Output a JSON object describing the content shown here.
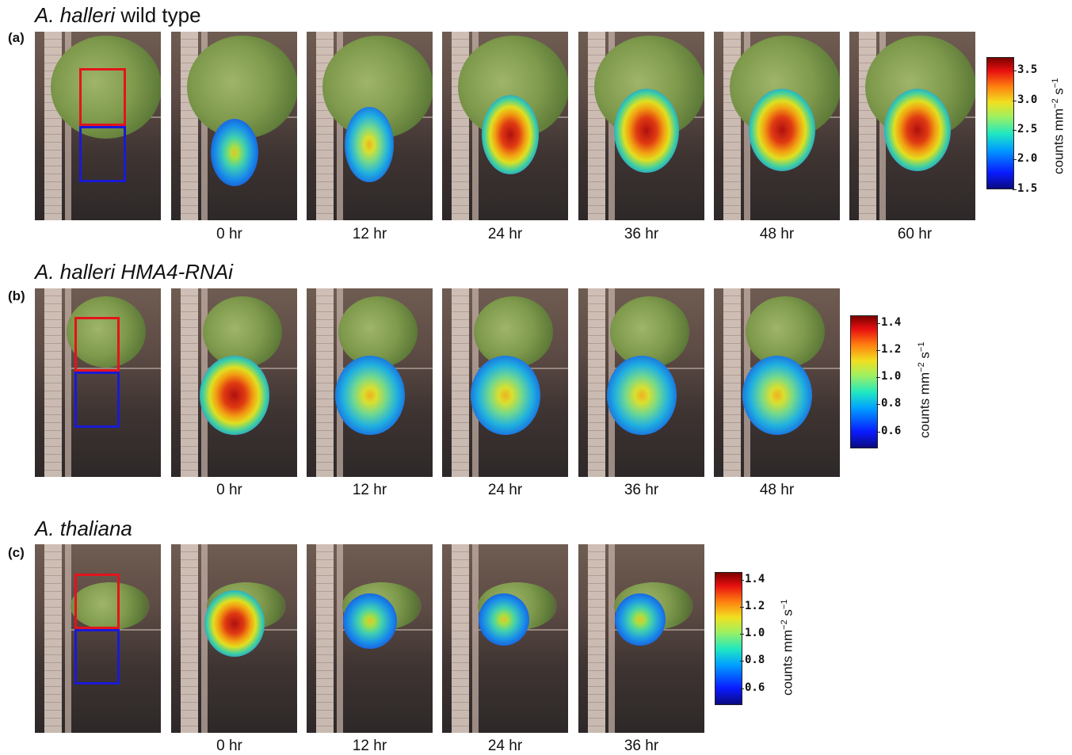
{
  "panels": [
    {
      "letter": "(a)",
      "title_italic": "A. halleri",
      "title_rest": " wild type",
      "timepoints": [
        "0 hr",
        "12 hr",
        "24 hr",
        "36 hr",
        "48 hr",
        "60 hr"
      ],
      "colorbar": {
        "ticks": [
          "3.5",
          "3.0",
          "2.5",
          "2.0",
          "1.5"
        ],
        "label": "counts mm",
        "exp1": "−2",
        "label2": " s",
        "exp2": "−1"
      }
    },
    {
      "letter": "(b)",
      "title_italic": "A. halleri HMA4-RNAi",
      "title_rest": "",
      "timepoints": [
        "0 hr",
        "12 hr",
        "24 hr",
        "36 hr",
        "48 hr"
      ],
      "colorbar": {
        "ticks": [
          "1.4",
          "1.2",
          "1.0",
          "0.8",
          "0.6"
        ],
        "label": "counts mm",
        "exp1": "−2",
        "label2": " s",
        "exp2": "−1"
      }
    },
    {
      "letter": "(c)",
      "title_italic": "A. thaliana",
      "title_rest": "",
      "timepoints": [
        "0 hr",
        "12 hr",
        "24 hr",
        "36 hr"
      ],
      "colorbar": {
        "ticks": [
          "1.4",
          "1.2",
          "1.0",
          "0.8",
          "0.6"
        ],
        "label": "counts mm",
        "exp1": "−2",
        "label2": " s",
        "exp2": "−1"
      }
    }
  ],
  "colors": {
    "shoot_box": "#e3141b",
    "root_box": "#1a1ad6"
  }
}
